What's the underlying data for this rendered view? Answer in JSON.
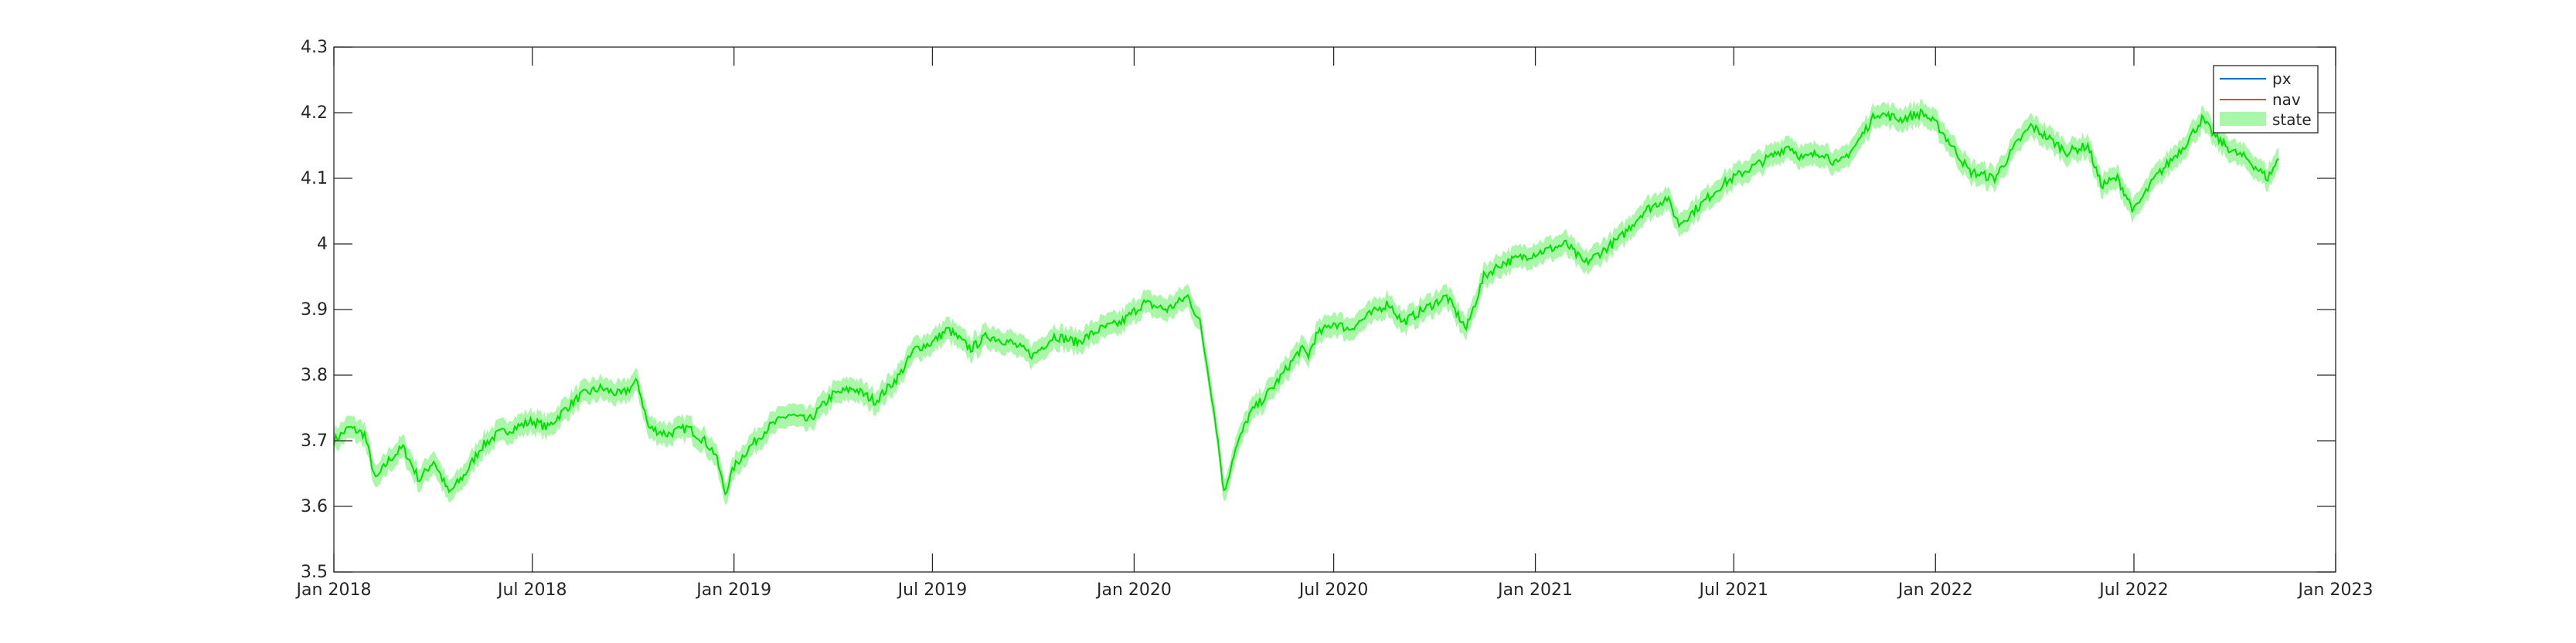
{
  "chart_data": {
    "type": "line",
    "title": "",
    "xlabel": "",
    "ylabel": "",
    "xlim": [
      "2018-01-01",
      "2023-01-01"
    ],
    "ylim": [
      3.5,
      4.3
    ],
    "grid": false,
    "legend_position": "top-right",
    "x_ticks": [
      {
        "date": "2018-01-01",
        "label": "Jan 2018"
      },
      {
        "date": "2018-07-01",
        "label": "Jul 2018"
      },
      {
        "date": "2019-01-01",
        "label": "Jan 2019"
      },
      {
        "date": "2019-07-01",
        "label": "Jul 2019"
      },
      {
        "date": "2020-01-01",
        "label": "Jan 2020"
      },
      {
        "date": "2020-07-01",
        "label": "Jul 2020"
      },
      {
        "date": "2021-01-01",
        "label": "Jan 2021"
      },
      {
        "date": "2021-07-01",
        "label": "Jul 2021"
      },
      {
        "date": "2022-01-01",
        "label": "Jan 2022"
      },
      {
        "date": "2022-07-01",
        "label": "Jul 2022"
      },
      {
        "date": "2023-01-01",
        "label": "Jan 2023"
      }
    ],
    "y_ticks": [
      {
        "value": 3.5,
        "label": "3.5"
      },
      {
        "value": 3.6,
        "label": "3.6"
      },
      {
        "value": 3.7,
        "label": "3.7"
      },
      {
        "value": 3.8,
        "label": "3.8"
      },
      {
        "value": 3.9,
        "label": "3.9"
      },
      {
        "value": 4.0,
        "label": "4"
      },
      {
        "value": 4.1,
        "label": "4.1"
      },
      {
        "value": 4.2,
        "label": "4.2"
      },
      {
        "value": 4.3,
        "label": "4.3"
      }
    ],
    "state_band_halfwidth": 0.017,
    "series": [
      {
        "name": "px",
        "color": "#0072BD"
      },
      {
        "name": "nav",
        "color": "#D95319"
      },
      {
        "name": "state",
        "color": "#00E000",
        "band_color": "#AAF7AA"
      }
    ],
    "x": [
      "2018-01-01",
      "2018-01-15",
      "2018-01-29",
      "2018-02-08",
      "2018-02-20",
      "2018-03-05",
      "2018-03-20",
      "2018-04-02",
      "2018-04-16",
      "2018-05-01",
      "2018-05-15",
      "2018-05-30",
      "2018-06-15",
      "2018-07-01",
      "2018-07-15",
      "2018-08-01",
      "2018-08-15",
      "2018-09-01",
      "2018-09-20",
      "2018-10-05",
      "2018-10-15",
      "2018-11-01",
      "2018-11-20",
      "2018-12-05",
      "2018-12-15",
      "2018-12-24",
      "2019-01-01",
      "2019-01-15",
      "2019-02-01",
      "2019-02-20",
      "2019-03-10",
      "2019-04-01",
      "2019-04-20",
      "2019-05-10",
      "2019-06-01",
      "2019-06-15",
      "2019-07-01",
      "2019-07-15",
      "2019-08-05",
      "2019-08-20",
      "2019-09-10",
      "2019-10-01",
      "2019-10-20",
      "2019-11-10",
      "2019-12-01",
      "2019-12-20",
      "2020-01-10",
      "2020-01-31",
      "2020-02-19",
      "2020-03-01",
      "2020-03-09",
      "2020-03-16",
      "2020-03-23",
      "2020-04-01",
      "2020-04-15",
      "2020-05-01",
      "2020-05-15",
      "2020-06-01",
      "2020-06-08",
      "2020-06-15",
      "2020-07-01",
      "2020-07-15",
      "2020-08-01",
      "2020-08-20",
      "2020-09-02",
      "2020-09-21",
      "2020-10-12",
      "2020-10-30",
      "2020-11-15",
      "2020-12-01",
      "2020-12-20",
      "2021-01-10",
      "2021-01-29",
      "2021-02-15",
      "2021-03-04",
      "2021-03-20",
      "2021-04-10",
      "2021-05-01",
      "2021-05-12",
      "2021-06-01",
      "2021-06-20",
      "2021-07-10",
      "2021-08-01",
      "2021-08-20",
      "2021-09-02",
      "2021-09-20",
      "2021-10-04",
      "2021-10-20",
      "2021-11-08",
      "2021-11-30",
      "2021-12-20",
      "2022-01-03",
      "2022-01-20",
      "2022-02-01",
      "2022-02-24",
      "2022-03-15",
      "2022-03-29",
      "2022-04-15",
      "2022-05-01",
      "2022-05-20",
      "2022-06-01",
      "2022-06-16",
      "2022-07-01",
      "2022-07-20",
      "2022-08-16",
      "2022-09-01",
      "2022-09-15",
      "2022-09-30",
      "2022-10-12",
      "2022-10-31",
      "2022-11-10"
    ],
    "y": [
      3.7,
      3.72,
      3.71,
      3.64,
      3.67,
      3.69,
      3.64,
      3.67,
      3.62,
      3.65,
      3.69,
      3.71,
      3.72,
      3.73,
      3.72,
      3.75,
      3.77,
      3.78,
      3.77,
      3.79,
      3.72,
      3.71,
      3.72,
      3.7,
      3.68,
      3.62,
      3.66,
      3.69,
      3.72,
      3.74,
      3.73,
      3.77,
      3.78,
      3.76,
      3.8,
      3.84,
      3.85,
      3.87,
      3.84,
      3.86,
      3.85,
      3.83,
      3.86,
      3.85,
      3.87,
      3.88,
      3.91,
      3.9,
      3.92,
      3.88,
      3.8,
      3.72,
      3.62,
      3.68,
      3.74,
      3.77,
      3.8,
      3.84,
      3.83,
      3.86,
      3.88,
      3.87,
      3.89,
      3.91,
      3.88,
      3.9,
      3.92,
      3.87,
      3.95,
      3.97,
      3.98,
      3.99,
      4.0,
      3.97,
      3.99,
      4.01,
      4.05,
      4.07,
      4.03,
      4.06,
      4.09,
      4.11,
      4.13,
      4.15,
      4.13,
      4.14,
      4.12,
      4.15,
      4.2,
      4.19,
      4.2,
      4.18,
      4.14,
      4.11,
      4.1,
      4.15,
      4.18,
      4.16,
      4.14,
      4.15,
      4.09,
      4.1,
      4.05,
      4.1,
      4.15,
      4.19,
      4.16,
      4.14,
      4.13,
      4.1,
      4.13
    ]
  }
}
